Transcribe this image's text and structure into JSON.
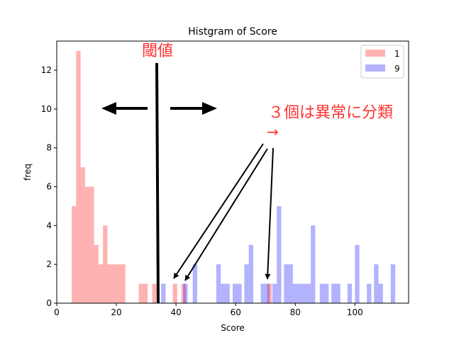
{
  "chart_data": {
    "type": "histogram",
    "title": "Histgram of Score",
    "xlabel": "Score",
    "ylabel": "freq",
    "xlim": [
      0,
      118
    ],
    "ylim": [
      0,
      13.5
    ],
    "x_ticks": [
      0,
      20,
      40,
      60,
      80,
      100
    ],
    "y_ticks": [
      0,
      2,
      4,
      6,
      8,
      10,
      12
    ],
    "grid": false,
    "legend_position": "top-right",
    "bin_width": 1.5,
    "series": [
      {
        "name": "1",
        "color": "#ff0000",
        "alpha": 0.3,
        "bins": [
          {
            "x": 5.0,
            "count": 5
          },
          {
            "x": 6.5,
            "count": 13
          },
          {
            "x": 8.0,
            "count": 7
          },
          {
            "x": 9.5,
            "count": 6
          },
          {
            "x": 11.0,
            "count": 6
          },
          {
            "x": 12.5,
            "count": 3
          },
          {
            "x": 14.0,
            "count": 2
          },
          {
            "x": 15.5,
            "count": 4
          },
          {
            "x": 17.0,
            "count": 2
          },
          {
            "x": 18.5,
            "count": 2
          },
          {
            "x": 20.0,
            "count": 2
          },
          {
            "x": 21.5,
            "count": 2
          },
          {
            "x": 27.5,
            "count": 1
          },
          {
            "x": 29.0,
            "count": 1
          },
          {
            "x": 32.0,
            "count": 1
          },
          {
            "x": 38.9,
            "count": 1
          },
          {
            "x": 41.8,
            "count": 1
          },
          {
            "x": 70.6,
            "count": 1
          }
        ]
      },
      {
        "name": "9",
        "color": "#0000ff",
        "alpha": 0.3,
        "bins": [
          {
            "x": 35.0,
            "count": 1
          },
          {
            "x": 42.4,
            "count": 1
          },
          {
            "x": 45.6,
            "count": 2
          },
          {
            "x": 53.5,
            "count": 2
          },
          {
            "x": 55.0,
            "count": 1
          },
          {
            "x": 56.5,
            "count": 1
          },
          {
            "x": 59.0,
            "count": 1
          },
          {
            "x": 60.5,
            "count": 1
          },
          {
            "x": 62.9,
            "count": 2
          },
          {
            "x": 64.4,
            "count": 3
          },
          {
            "x": 68.4,
            "count": 1
          },
          {
            "x": 69.9,
            "count": 1
          },
          {
            "x": 72.3,
            "count": 1
          },
          {
            "x": 73.8,
            "count": 5
          },
          {
            "x": 76.2,
            "count": 2
          },
          {
            "x": 77.7,
            "count": 2
          },
          {
            "x": 79.2,
            "count": 1
          },
          {
            "x": 80.7,
            "count": 1
          },
          {
            "x": 82.2,
            "count": 1
          },
          {
            "x": 83.7,
            "count": 1
          },
          {
            "x": 85.2,
            "count": 4
          },
          {
            "x": 88.2,
            "count": 1
          },
          {
            "x": 89.7,
            "count": 1
          },
          {
            "x": 92.1,
            "count": 1
          },
          {
            "x": 93.6,
            "count": 1
          },
          {
            "x": 97.5,
            "count": 1
          },
          {
            "x": 100.0,
            "count": 3
          },
          {
            "x": 104.0,
            "count": 1
          },
          {
            "x": 106.4,
            "count": 2
          },
          {
            "x": 107.9,
            "count": 1
          },
          {
            "x": 112.0,
            "count": 2
          }
        ]
      }
    ],
    "threshold": {
      "label": "閾値",
      "x": 34.0,
      "color": "#ff3333"
    },
    "annotation": {
      "text": "３個は異常に分類",
      "arrow_glyph": "→",
      "color": "#ff3333",
      "pointed_scores": [
        40,
        43,
        72
      ]
    }
  }
}
